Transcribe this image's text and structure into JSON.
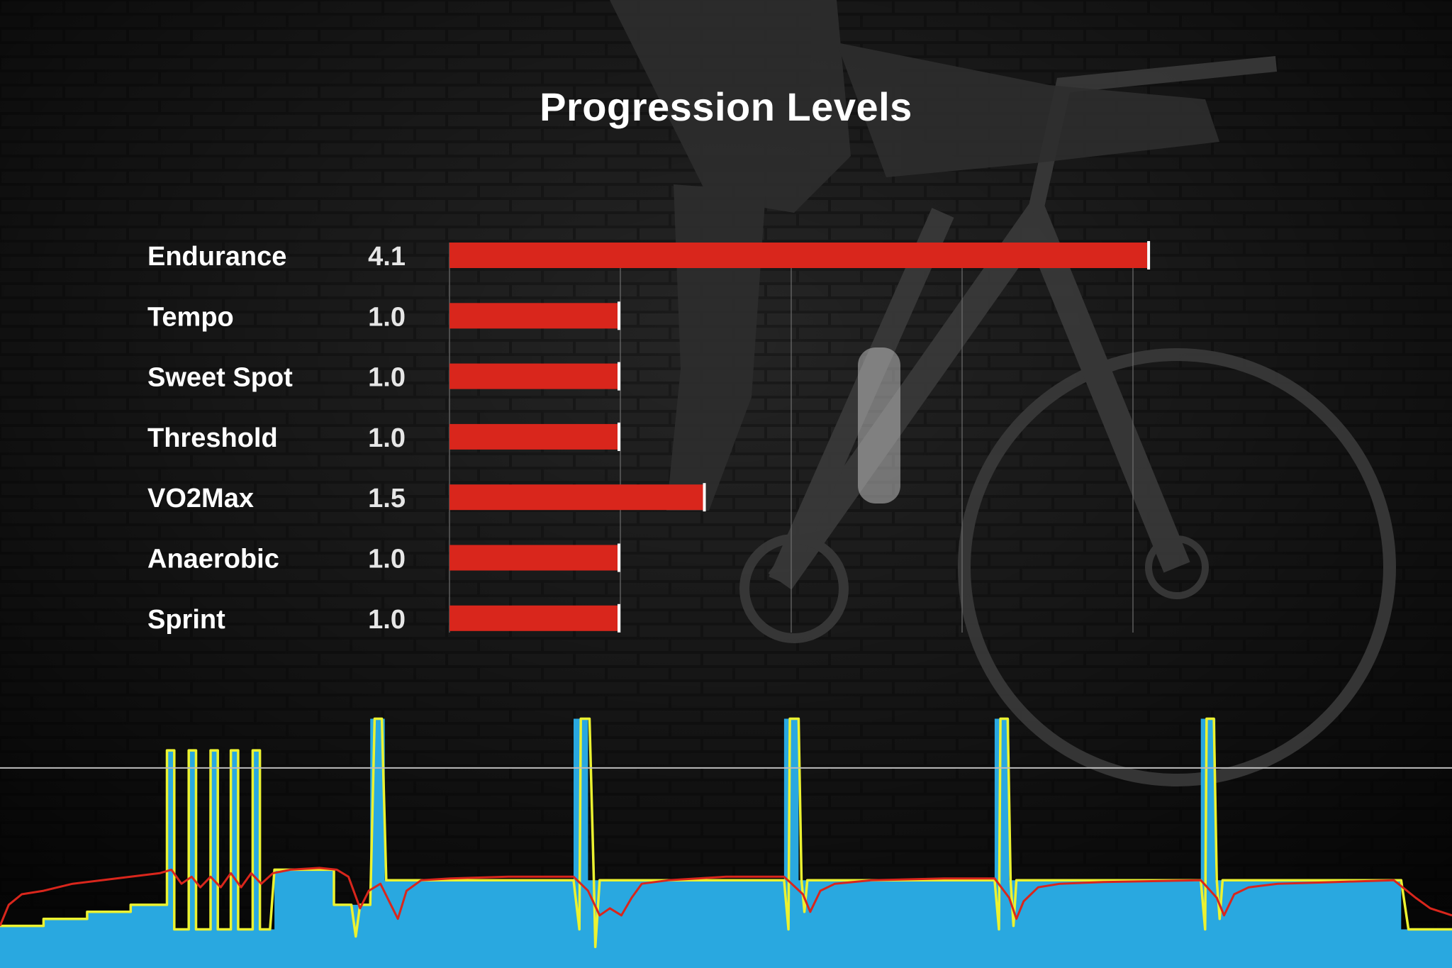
{
  "chart_data": [
    {
      "type": "bar",
      "orientation": "horizontal",
      "title": "Progression Levels",
      "categories": [
        "Endurance",
        "Tempo",
        "Sweet Spot",
        "Threshold",
        "VO2Max",
        "Anaerobic",
        "Sprint"
      ],
      "values": [
        4.1,
        1.0,
        1.0,
        1.0,
        1.5,
        1.0,
        1.0
      ],
      "value_labels": [
        "4.1",
        "1.0",
        "1.0",
        "1.0",
        "1.5",
        "1.0",
        "1.0"
      ],
      "xlim": [
        0,
        10
      ],
      "grid": true,
      "bar_color": "#d9261c",
      "bar_end_marker_color": "#ffffff"
    },
    {
      "type": "area",
      "description_role": "workout power profile",
      "xlim": [
        0,
        100
      ],
      "ylim": [
        0,
        100
      ],
      "reference_line": 57,
      "series": [
        {
          "kind": "area",
          "color": "#29a8e0",
          "points": [
            [
              0,
              12
            ],
            [
              3,
              12
            ],
            [
              3,
              14
            ],
            [
              6,
              14
            ],
            [
              6,
              16
            ],
            [
              9,
              16
            ],
            [
              9,
              18
            ],
            [
              11.5,
              18
            ],
            [
              11.5,
              21
            ],
            [
              11.5,
              21
            ],
            [
              11.5,
              62
            ],
            [
              12.0,
              62
            ],
            [
              12.0,
              11
            ],
            [
              13.0,
              11
            ],
            [
              13.0,
              62
            ],
            [
              13.5,
              62
            ],
            [
              13.5,
              11
            ],
            [
              14.5,
              11
            ],
            [
              14.5,
              62
            ],
            [
              15.0,
              62
            ],
            [
              15.0,
              11
            ],
            [
              15.9,
              11
            ],
            [
              15.9,
              62
            ],
            [
              16.4,
              62
            ],
            [
              16.4,
              11
            ],
            [
              17.4,
              11
            ],
            [
              17.4,
              62
            ],
            [
              17.9,
              62
            ],
            [
              17.9,
              11
            ],
            [
              18.9,
              11
            ],
            [
              18.9,
              28
            ],
            [
              23.0,
              28
            ],
            [
              23.0,
              18
            ],
            [
              25.5,
              18
            ],
            [
              25.5,
              71
            ],
            [
              26.5,
              71
            ],
            [
              26.5,
              25
            ],
            [
              39.5,
              25
            ],
            [
              39.5,
              71
            ],
            [
              40.5,
              71
            ],
            [
              40.5,
              25
            ],
            [
              54.0,
              25
            ],
            [
              54.0,
              71
            ],
            [
              55.0,
              71
            ],
            [
              55.0,
              25
            ],
            [
              68.5,
              25
            ],
            [
              68.5,
              71
            ],
            [
              69.5,
              71
            ],
            [
              69.5,
              25
            ],
            [
              82.7,
              25
            ],
            [
              82.7,
              71
            ],
            [
              83.7,
              71
            ],
            [
              83.7,
              25
            ],
            [
              96.5,
              25
            ],
            [
              96.5,
              11
            ],
            [
              100,
              11
            ]
          ]
        },
        {
          "kind": "line",
          "color": "#ecf230",
          "points": [
            [
              0,
              12
            ],
            [
              3,
              12
            ],
            [
              3,
              14
            ],
            [
              6,
              14
            ],
            [
              6,
              16
            ],
            [
              9,
              16
            ],
            [
              9,
              18
            ],
            [
              11.5,
              18
            ],
            [
              11.5,
              62
            ],
            [
              12.0,
              62
            ],
            [
              12.0,
              11
            ],
            [
              13.0,
              11
            ],
            [
              13.0,
              62
            ],
            [
              13.5,
              62
            ],
            [
              13.5,
              11
            ],
            [
              14.5,
              11
            ],
            [
              14.5,
              62
            ],
            [
              15.0,
              62
            ],
            [
              15.0,
              11
            ],
            [
              15.9,
              11
            ],
            [
              15.9,
              62
            ],
            [
              16.4,
              62
            ],
            [
              16.4,
              11
            ],
            [
              17.4,
              11
            ],
            [
              17.4,
              62
            ],
            [
              17.9,
              62
            ],
            [
              17.9,
              11
            ],
            [
              18.6,
              11
            ],
            [
              18.9,
              28
            ],
            [
              23.0,
              28
            ],
            [
              23.0,
              18
            ],
            [
              24.2,
              18
            ],
            [
              24.5,
              9
            ],
            [
              24.8,
              18
            ],
            [
              25.5,
              18
            ],
            [
              25.8,
              71
            ],
            [
              26.3,
              71
            ],
            [
              26.6,
              25
            ],
            [
              39.5,
              25
            ],
            [
              39.9,
              11
            ],
            [
              40.0,
              71
            ],
            [
              40.6,
              71
            ],
            [
              40.9,
              25
            ],
            [
              41.0,
              6
            ],
            [
              41.3,
              25
            ],
            [
              54.0,
              25
            ],
            [
              54.3,
              11
            ],
            [
              54.4,
              71
            ],
            [
              55.0,
              71
            ],
            [
              55.2,
              25
            ],
            [
              55.4,
              16
            ],
            [
              55.6,
              25
            ],
            [
              68.5,
              25
            ],
            [
              68.8,
              11
            ],
            [
              68.9,
              71
            ],
            [
              69.4,
              71
            ],
            [
              69.6,
              25
            ],
            [
              69.8,
              12
            ],
            [
              70.0,
              25
            ],
            [
              82.7,
              25
            ],
            [
              83.0,
              11
            ],
            [
              83.1,
              71
            ],
            [
              83.6,
              71
            ],
            [
              83.8,
              25
            ],
            [
              84.0,
              14
            ],
            [
              84.2,
              25
            ],
            [
              96.5,
              25
            ],
            [
              97.0,
              11
            ],
            [
              100,
              11
            ]
          ]
        },
        {
          "kind": "line",
          "color": "#d9261c",
          "points": [
            [
              0,
              12
            ],
            [
              0.6,
              18
            ],
            [
              1.5,
              21
            ],
            [
              3,
              22
            ],
            [
              5,
              24
            ],
            [
              7,
              25
            ],
            [
              9,
              26
            ],
            [
              11,
              27
            ],
            [
              11.8,
              28
            ],
            [
              12.5,
              24
            ],
            [
              13.2,
              26
            ],
            [
              13.8,
              23
            ],
            [
              14.5,
              26
            ],
            [
              15.2,
              23
            ],
            [
              15.9,
              27
            ],
            [
              16.6,
              23
            ],
            [
              17.3,
              27
            ],
            [
              18.0,
              24
            ],
            [
              18.8,
              27
            ],
            [
              20,
              28
            ],
            [
              22,
              28.5
            ],
            [
              23.2,
              28
            ],
            [
              24.0,
              26
            ],
            [
              24.8,
              17
            ],
            [
              25.4,
              22
            ],
            [
              26.2,
              24
            ],
            [
              26.8,
              19
            ],
            [
              27.4,
              14
            ],
            [
              28.0,
              22
            ],
            [
              29.0,
              25
            ],
            [
              31,
              25.5
            ],
            [
              35,
              26
            ],
            [
              39.5,
              26
            ],
            [
              40.5,
              22
            ],
            [
              41.3,
              15
            ],
            [
              42.0,
              17
            ],
            [
              42.8,
              15
            ],
            [
              43.5,
              20
            ],
            [
              44.2,
              24
            ],
            [
              46,
              25
            ],
            [
              50,
              26
            ],
            [
              54.0,
              26
            ],
            [
              55.3,
              21
            ],
            [
              55.8,
              16
            ],
            [
              56.5,
              22
            ],
            [
              57.5,
              24
            ],
            [
              60,
              25
            ],
            [
              65,
              25.5
            ],
            [
              68.5,
              25.5
            ],
            [
              69.5,
              20
            ],
            [
              70.0,
              14
            ],
            [
              70.5,
              19
            ],
            [
              71.5,
              23
            ],
            [
              73,
              24
            ],
            [
              76,
              24.5
            ],
            [
              82.7,
              25
            ],
            [
              83.8,
              20
            ],
            [
              84.3,
              15
            ],
            [
              85.0,
              21
            ],
            [
              86.0,
              23
            ],
            [
              88,
              24
            ],
            [
              92,
              24.5
            ],
            [
              96.0,
              25
            ],
            [
              97.5,
              20
            ],
            [
              98.5,
              17
            ],
            [
              100,
              15
            ]
          ]
        }
      ]
    }
  ]
}
